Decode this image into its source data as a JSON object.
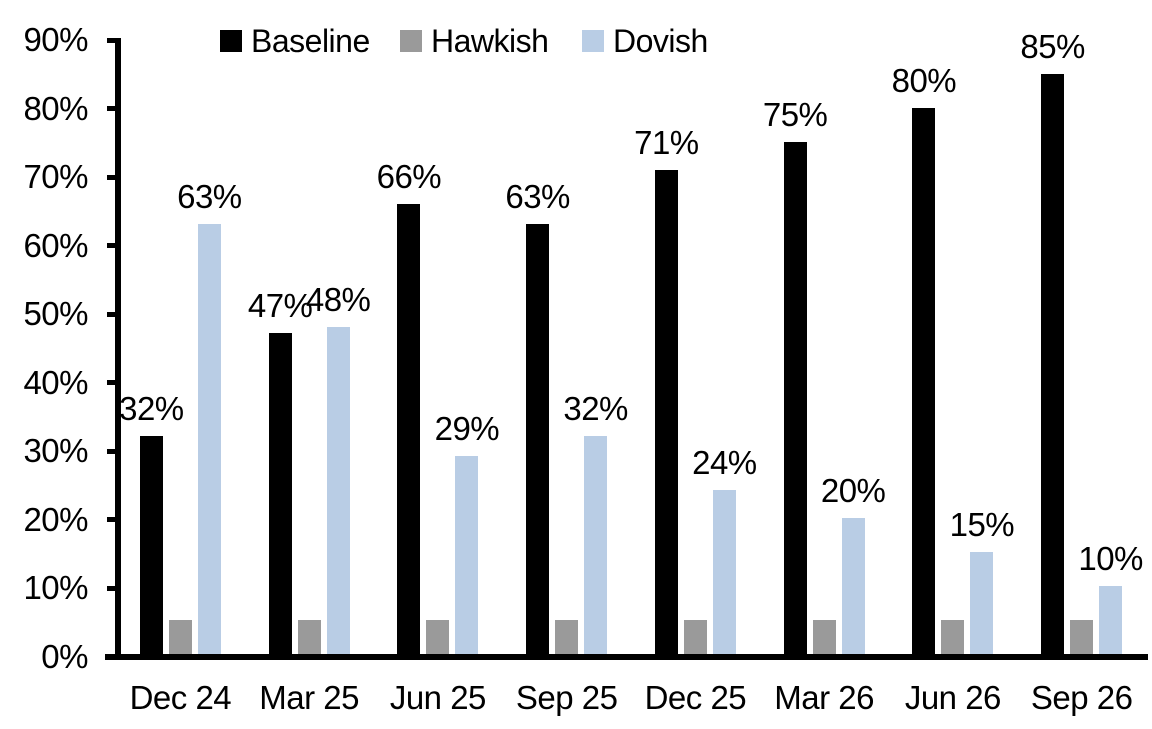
{
  "chart_data": {
    "type": "bar",
    "title": "",
    "categories": [
      "Dec 24",
      "Mar 25",
      "Jun 25",
      "Sep 25",
      "Dec 25",
      "Mar 26",
      "Jun 26",
      "Sep 26"
    ],
    "series": [
      {
        "name": "Baseline",
        "color": "#000000",
        "values": [
          32,
          47,
          66,
          63,
          71,
          75,
          80,
          85
        ],
        "data_labels": [
          "32%",
          "47%",
          "66%",
          "63%",
          "71%",
          "75%",
          "80%",
          "85%"
        ]
      },
      {
        "name": "Hawkish",
        "color": "#9a9a9a",
        "values": [
          5,
          5,
          5,
          5,
          5,
          5,
          5,
          5
        ],
        "data_labels": [
          null,
          null,
          null,
          null,
          null,
          null,
          null,
          null
        ]
      },
      {
        "name": "Dovish",
        "color": "#b9cde5",
        "values": [
          63,
          48,
          29,
          32,
          24,
          20,
          15,
          10
        ],
        "data_labels": [
          "63%",
          "48%",
          "29%",
          "32%",
          "24%",
          "20%",
          "15%",
          "10%"
        ]
      }
    ],
    "y_axis": {
      "min": 0,
      "max": 90,
      "tick_step": 10,
      "tick_labels": [
        "0%",
        "10%",
        "20%",
        "30%",
        "40%",
        "50%",
        "60%",
        "70%",
        "80%",
        "90%"
      ]
    },
    "legend": {
      "position": "top",
      "entries": [
        "Baseline",
        "Hawkish",
        "Dovish"
      ]
    },
    "gridlines": false,
    "axis_color": "#000000",
    "background_color": "#ffffff"
  }
}
